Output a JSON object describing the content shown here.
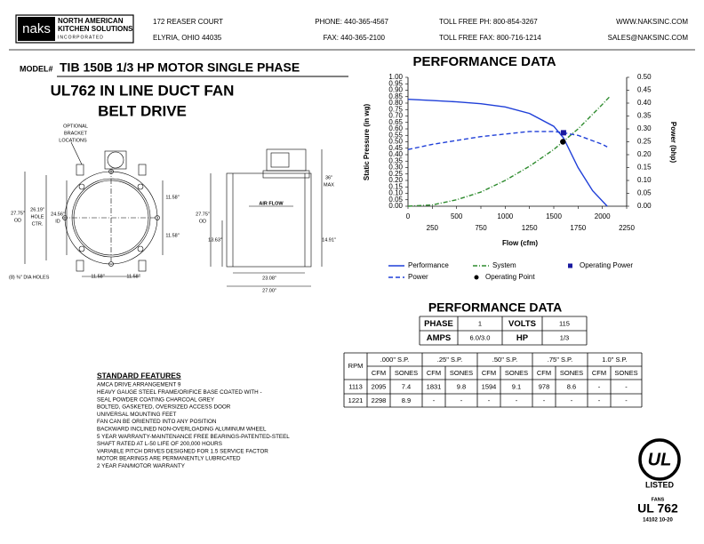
{
  "header": {
    "logo": "naks",
    "company": [
      "NORTH AMERICAN",
      "KITCHEN SOLUTIONS",
      "INCORPORATED"
    ],
    "address": [
      "172 REASER COURT",
      "ELYRIA, OHIO 44035"
    ],
    "phone": [
      "PHONE: 440-365-4567",
      "FAX: 440-365-2100"
    ],
    "tollfree": [
      "TOLL FREE PH: 800-854-3267",
      "TOLL FREE FAX: 800-716-1214"
    ],
    "web": [
      "WWW.NAKSINC.COM",
      "SALES@NAKSINC.COM"
    ]
  },
  "model": {
    "label": "MODEL#",
    "text": "TIB 150B  1/3 HP MOTOR SINGLE PHASE",
    "line1": "UL762 IN LINE DUCT FAN",
    "line2": "BELT DRIVE"
  },
  "drawing": {
    "labels": [
      "OPTIONAL",
      "BRACKET",
      "LOCATIONS",
      "27.75\"",
      "OD",
      "26.19\"",
      "HOLE",
      "CTR.",
      "24.56\"",
      "ID",
      "11.58\"",
      "11.58\"",
      "(8) ⅜\" DIA HOLES",
      "11.58\"",
      "11.58\"",
      "27.75\"",
      "OD",
      "13.63\"",
      "AIR FLOW",
      "36\"",
      "MAX",
      "14.91\"",
      "23.08\"",
      "27.00\""
    ]
  },
  "chart_data": {
    "type": "line",
    "title": "PERFORMANCE DATA",
    "xlabel": "Flow (cfm)",
    "ylabel": "Static Pressure (in wg)",
    "y2label": "Power (bhp)",
    "xlim": [
      0,
      2250
    ],
    "xticks": [
      0,
      250,
      500,
      750,
      1000,
      1250,
      1500,
      1750,
      2000,
      2250
    ],
    "ylim": [
      0,
      1
    ],
    "yticks": [
      {
        "value": 0,
        "label": "0.00"
      },
      {
        "value": 0.05,
        "label": "0.05"
      },
      {
        "value": 0.1,
        "label": "0.10"
      },
      {
        "value": 0.15,
        "label": "0.15"
      },
      {
        "value": 0.2,
        "label": "0.20"
      },
      {
        "value": 0.25,
        "label": "0.25"
      },
      {
        "value": 0.3,
        "label": "0.30"
      },
      {
        "value": 0.35,
        "label": "0.35"
      },
      {
        "value": 0.4,
        "label": "0.40"
      },
      {
        "value": 0.45,
        "label": "0.45"
      },
      {
        "value": 0.5,
        "label": "0.50"
      },
      {
        "value": 0.55,
        "label": "0.55"
      },
      {
        "value": 0.6,
        "label": "0.60"
      },
      {
        "value": 0.65,
        "label": "0.65"
      },
      {
        "value": 0.7,
        "label": "0.70"
      },
      {
        "value": 0.75,
        "label": "0.75"
      },
      {
        "value": 0.8,
        "label": "0.80"
      },
      {
        "value": 0.85,
        "label": "0.85"
      },
      {
        "value": 0.9,
        "label": "0.90"
      },
      {
        "value": 0.95,
        "label": "0.95"
      },
      {
        "value": 1,
        "label": "1.00"
      }
    ],
    "y2lim": [
      0,
      0.5
    ],
    "y2ticks": [
      {
        "value": 0,
        "label": "0.00"
      },
      {
        "value": 0.05,
        "label": "0.05"
      },
      {
        "value": 0.1,
        "label": "0.10"
      },
      {
        "value": 0.15,
        "label": "0.15"
      },
      {
        "value": 0.2,
        "label": "0.20"
      },
      {
        "value": 0.25,
        "label": "0.25"
      },
      {
        "value": 0.3,
        "label": "0.30"
      },
      {
        "value": 0.35,
        "label": "0.35"
      },
      {
        "value": 0.4,
        "label": "0.40"
      },
      {
        "value": 0.45,
        "label": "0.45"
      },
      {
        "value": 0.5,
        "label": "0.50"
      }
    ],
    "grid": false,
    "series": [
      {
        "name": "Performance",
        "color": "#1f3fd8",
        "linestyle": "solid",
        "x": [
          0,
          250,
          500,
          750,
          1000,
          1250,
          1500,
          1600,
          1750,
          1900,
          2050
        ],
        "values": [
          0.83,
          0.82,
          0.81,
          0.795,
          0.77,
          0.72,
          0.62,
          0.53,
          0.3,
          0.12,
          0
        ]
      },
      {
        "name": "System",
        "color": "#2e8b2e",
        "linestyle": "dashdot",
        "x": [
          0,
          250,
          500,
          750,
          1000,
          1250,
          1500,
          1750,
          2000,
          2075
        ],
        "values": [
          0,
          0.01,
          0.05,
          0.11,
          0.2,
          0.31,
          0.44,
          0.6,
          0.79,
          0.85
        ]
      },
      {
        "name": "Power",
        "color": "#1f3fd8",
        "linestyle": "dashed",
        "axis": "y2",
        "x": [
          0,
          250,
          500,
          750,
          1000,
          1250,
          1500,
          1600,
          1750,
          2000,
          2050
        ],
        "values": [
          0.22,
          0.24,
          0.255,
          0.27,
          0.28,
          0.29,
          0.29,
          0.285,
          0.275,
          0.24,
          0.23
        ]
      },
      {
        "name": "Operating Point",
        "color": "#000000",
        "marker": "circle",
        "x": [
          1594
        ],
        "values": [
          0.5
        ]
      },
      {
        "name": "Operating Power",
        "color": "#1a1aa0",
        "marker": "square",
        "axis": "y2",
        "x": [
          1600
        ],
        "values": [
          0.285
        ]
      }
    ]
  },
  "performance": {
    "title": "PERFORMANCE DATA",
    "specs": [
      [
        "PHASE",
        "1",
        "VOLTS",
        "115"
      ],
      [
        "AMPS",
        "6.0/3.0",
        "HP",
        "1/3"
      ]
    ],
    "header": [
      "RPM",
      ".000\" S.P.",
      ".25\" S.P.",
      ".50\" S.P.",
      ".75\" S.P.",
      "1.0\" S.P."
    ],
    "subheader": [
      "CFM",
      "SONES",
      "CFM",
      "SONES",
      "CFM",
      "SONES",
      "CFM",
      "SONES",
      "CFM",
      "SONES"
    ],
    "rows": [
      [
        "1113",
        "2095",
        "7.4",
        "1831",
        "9.8",
        "1594",
        "9.1",
        "978",
        "8.6",
        "-",
        "-"
      ],
      [
        "1221",
        "2298",
        "8.9",
        "-",
        "-",
        "-",
        "-",
        "-",
        "-",
        "-",
        "-"
      ]
    ]
  },
  "features": {
    "title": "STANDARD FEATURES",
    "items": [
      "AMCA DRIVE ARRANGEMENT 9",
      "HEAVY GAUGE STEEL FRAME/ORIFICE BASE COATED WITH -",
      "SEAL POWDER COATING CHARCOAL GREY",
      "BOLTED, GASKETED, OVERSIZED ACCESS DOOR",
      "UNIVERSAL MOUNTING FEET",
      "FAN CAN BE ORIENTED INTO ANY POSITION",
      "BACKWARD INCLINED NON-OVERLOADING ALUMINUM WHEEL",
      "5 YEAR WARRANTY-MAINTENANCE FREE BEARINGS-PATENTED-STEEL",
      "SHAFT RATED AT L-50 LIFE OF 200,000 HOURS",
      "VARIABLE PITCH DRIVES DESIGNED FOR 1.5 SERVICE FACTOR",
      "MOTOR BEARINGS ARE PERMANENTLY LUBRICATED",
      "2 YEAR FAN/MOTOR WARRANTY"
    ]
  },
  "ul": {
    "mark": "UL",
    "listed": "LISTED",
    "category": "FANS",
    "standard": "UL 762",
    "code": "14102 10-20"
  }
}
